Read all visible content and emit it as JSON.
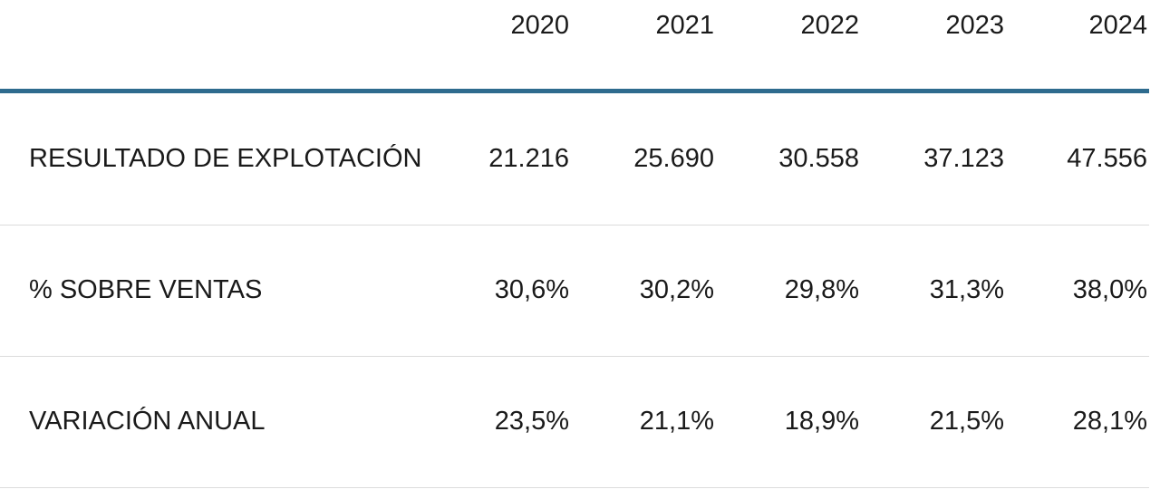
{
  "chart_data": {
    "type": "table",
    "columns": [
      "2020",
      "2021",
      "2022",
      "2023",
      "2024"
    ],
    "rows": [
      {
        "label": "RESULTADO DE EXPLOTACIÓN",
        "values": [
          "21.216",
          "25.690",
          "30.558",
          "37.123",
          "47.556"
        ]
      },
      {
        "label": "% SOBRE VENTAS",
        "values": [
          "30,6%",
          "30,2%",
          "29,8%",
          "31,3%",
          "38,0%"
        ]
      },
      {
        "label": "VARIACIÓN ANUAL",
        "values": [
          "23,5%",
          "21,1%",
          "18,9%",
          "21,5%",
          "28,1%"
        ]
      }
    ]
  },
  "colors": {
    "header_rule": "#2e6b8e",
    "row_rule": "#dcdcdc",
    "text": "#1a1a1a"
  }
}
